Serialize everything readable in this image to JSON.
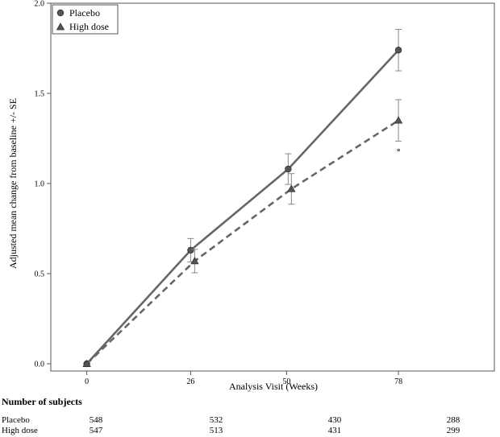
{
  "chart_data": {
    "type": "line",
    "title": "",
    "xlabel": "Analysis Visit (Weeks)",
    "ylabel": "Adjusted mean change from baseline +/- SE",
    "x": [
      0,
      26,
      50,
      78
    ],
    "x_tick_labels": [
      "0",
      "26",
      "50",
      "78"
    ],
    "xlim": [
      -9,
      102
    ],
    "ylim": [
      -0.04,
      2.0
    ],
    "y_ticks": [
      0.0,
      0.5,
      1.0,
      1.5,
      2.0
    ],
    "y_tick_labels": [
      "0.0",
      "0.5",
      "1.0",
      "1.5",
      "2.0"
    ],
    "grid": false,
    "legend_position": "top-left",
    "series": [
      {
        "name": "Placebo",
        "marker": "circle",
        "line_style": "solid",
        "color": "#666666",
        "values": [
          0.0,
          0.63,
          1.08,
          1.74
        ],
        "se": [
          0.0,
          0.065,
          0.085,
          0.115
        ]
      },
      {
        "name": "High dose",
        "marker": "triangle",
        "line_style": "dashed",
        "color": "#666666",
        "values": [
          0.0,
          0.57,
          0.97,
          1.35
        ],
        "se": [
          0.0,
          0.065,
          0.085,
          0.115
        ]
      }
    ],
    "annotations": [
      {
        "text": "*",
        "x": 78,
        "y": 1.18
      }
    ]
  },
  "subjects_table": {
    "title": "Number of subjects",
    "rows": [
      {
        "label": "Placebo",
        "counts": [
          "548",
          "532",
          "430",
          "288"
        ]
      },
      {
        "label": "High dose",
        "counts": [
          "547",
          "513",
          "431",
          "299"
        ]
      }
    ]
  }
}
